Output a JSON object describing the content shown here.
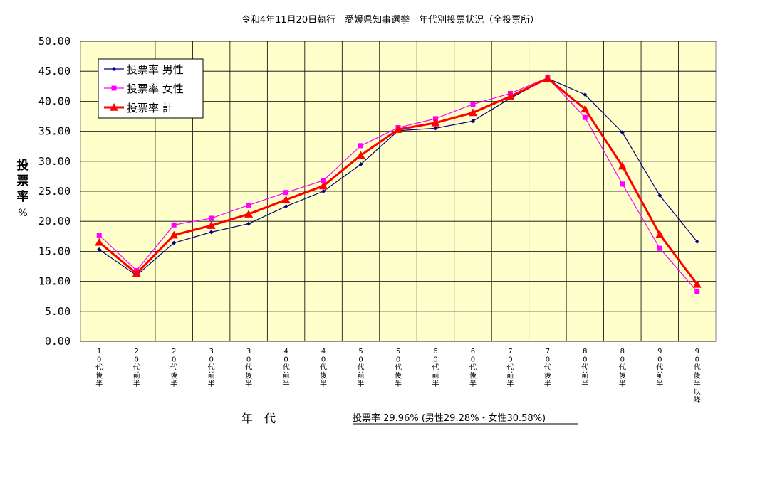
{
  "chart_data": {
    "type": "line",
    "title": "令和4年11月20日執行　愛媛県知事選挙　年代別投票状況（全投票所）",
    "ylabel": "投票率%",
    "xlabel": "年　代",
    "note": "投票率 29.96% (男性29.28%・女性30.58%)",
    "ylim": [
      0,
      50
    ],
    "yticks": [
      "0.00",
      "5.00",
      "10.00",
      "15.00",
      "20.00",
      "25.00",
      "30.00",
      "35.00",
      "40.00",
      "45.00",
      "50.00"
    ],
    "categories": [
      "10代後半",
      "20代前半",
      "20代後半",
      "30代前半",
      "30代後半",
      "40代前半",
      "40代後半",
      "50代前半",
      "50代後半",
      "60代前半",
      "60代後半",
      "70代前半",
      "70代後半",
      "80代前半",
      "80代後半",
      "90代前半",
      "90代後半以降"
    ],
    "grid": true,
    "legend_position": "top-left",
    "series": [
      {
        "name": "投票率 男性",
        "color": "#000080",
        "marker": "diamond",
        "values": [
          15.3,
          11.0,
          16.4,
          18.2,
          19.6,
          22.5,
          25.0,
          29.5,
          35.1,
          35.5,
          36.7,
          40.5,
          43.8,
          41.1,
          34.8,
          24.3,
          16.6
        ]
      },
      {
        "name": "投票率 女性",
        "color": "#ff00ff",
        "marker": "square",
        "values": [
          17.7,
          11.8,
          19.4,
          20.5,
          22.7,
          24.8,
          26.8,
          32.6,
          35.6,
          37.1,
          39.5,
          41.3,
          43.9,
          37.3,
          26.2,
          15.5,
          8.3
        ]
      },
      {
        "name": "投票率 計",
        "color": "#ff0000",
        "marker": "triangle",
        "values": [
          16.5,
          11.3,
          17.7,
          19.3,
          21.2,
          23.6,
          25.9,
          31.0,
          35.3,
          36.4,
          38.1,
          40.8,
          43.8,
          38.7,
          29.2,
          17.8,
          9.5
        ]
      }
    ]
  }
}
